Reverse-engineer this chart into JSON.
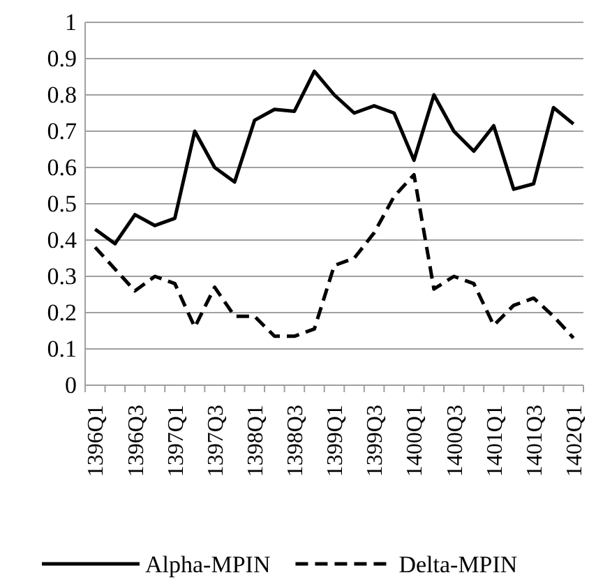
{
  "chart_data": {
    "type": "line",
    "categories": [
      "1396Q1",
      null,
      "1396Q3",
      null,
      "1397Q1",
      null,
      "1397Q3",
      null,
      "1398Q1",
      null,
      "1398Q3",
      null,
      "1399Q1",
      null,
      "1399Q3",
      null,
      "1400Q1",
      null,
      "1400Q3",
      null,
      "1401Q1",
      null,
      "1401Q3",
      null,
      "1402Q1"
    ],
    "series": [
      {
        "name": "Alpha-MPIN",
        "color": "#000000",
        "line_style": "solid",
        "values": [
          0.43,
          0.39,
          0.47,
          0.44,
          0.46,
          0.7,
          0.6,
          0.56,
          0.73,
          0.76,
          0.755,
          0.865,
          0.8,
          0.75,
          0.77,
          0.75,
          0.62,
          0.8,
          0.7,
          0.645,
          0.715,
          0.54,
          0.555,
          0.765,
          0.72
        ]
      },
      {
        "name": "Delta-MPIN",
        "color": "#000000",
        "line_style": "dashed",
        "values": [
          0.38,
          0.32,
          0.26,
          0.3,
          0.28,
          0.16,
          0.27,
          0.19,
          0.19,
          0.135,
          0.135,
          0.155,
          0.33,
          0.35,
          0.42,
          0.52,
          0.58,
          0.265,
          0.3,
          0.28,
          0.165,
          0.22,
          0.24,
          0.19,
          0.13
        ]
      }
    ],
    "ylim": [
      0,
      1
    ],
    "yticks": [
      0,
      0.1,
      0.2,
      0.3,
      0.4,
      0.5,
      0.6,
      0.7,
      0.8,
      0.9,
      1
    ],
    "grid": "y",
    "legend": "bottom",
    "marker": "none"
  }
}
